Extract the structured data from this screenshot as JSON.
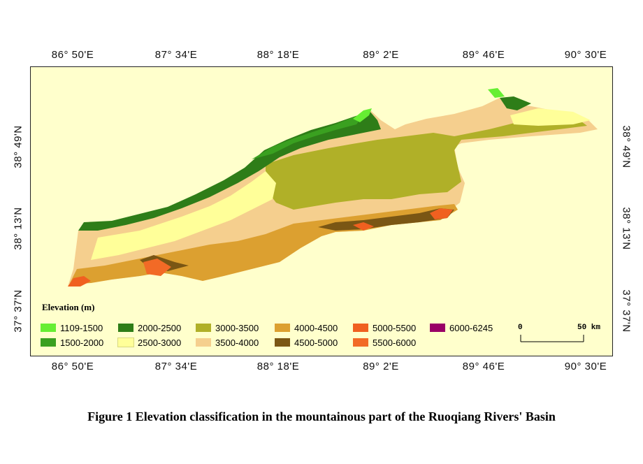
{
  "longitude_labels": [
    "86° 50'E",
    "87° 34'E",
    "88° 18'E",
    "89° 2'E",
    "89° 46'E",
    "90° 30'E"
  ],
  "latitude_labels": [
    "37° 37'N",
    "38° 13'N",
    "38° 49'N"
  ],
  "legend": {
    "title": "Elevation (m)",
    "classes": [
      {
        "label": "1109-1500",
        "color": "#66ee33"
      },
      {
        "label": "1500-2000",
        "color": "#3aa020"
      },
      {
        "label": "2000-2500",
        "color": "#2e7d18"
      },
      {
        "label": "2500-3000",
        "color": "#ffff99"
      },
      {
        "label": "3000-3500",
        "color": "#b0b028"
      },
      {
        "label": "3500-4000",
        "color": "#f5cf8e"
      },
      {
        "label": "4000-4500",
        "color": "#dca030"
      },
      {
        "label": "4500-5000",
        "color": "#7a5614"
      },
      {
        "label": "5000-5500",
        "color": "#f06020"
      },
      {
        "label": "5500-6000",
        "color": "#f26a26"
      },
      {
        "label": "6000-6245",
        "color": "#990066"
      }
    ]
  },
  "scale_bar": {
    "start_label": "0",
    "end_label": "50 km"
  },
  "caption": "Figure 1  Elevation classification in the mountainous part of the Ruoqiang Rivers' Basin",
  "colors": {
    "background": "#ffffcc",
    "frame": "#222222"
  }
}
